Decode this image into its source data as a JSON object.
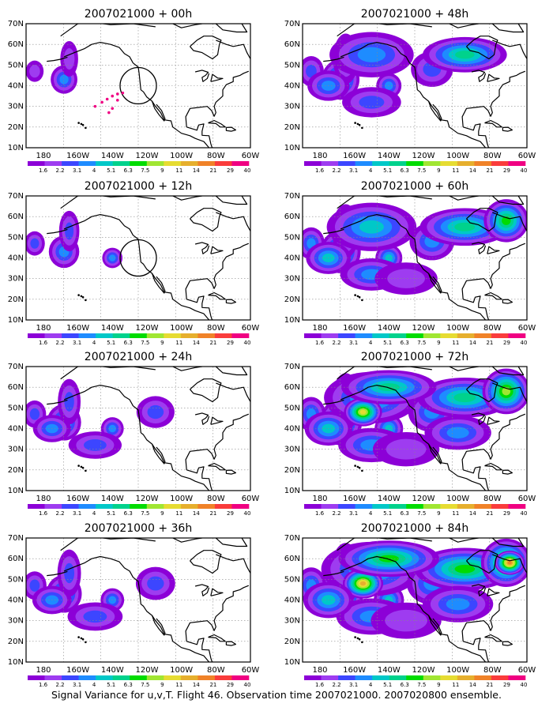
{
  "caption": "Signal Variance for u,v,T. Flight 46. Observation time 2007021000. 2007020800 ensemble.",
  "axes": {
    "x_ticks": [
      "180",
      "160W",
      "140W",
      "120W",
      "100W",
      "80W",
      "60W"
    ],
    "y_ticks": [
      "10N",
      "20N",
      "30N",
      "40N",
      "50N",
      "60N",
      "70N"
    ]
  },
  "colorbar": {
    "labels": [
      "1.6",
      "2.2",
      "3.1",
      "4",
      "5.1",
      "6.3",
      "7.5",
      "9",
      "11",
      "14",
      "21",
      "29",
      "40"
    ],
    "colors": [
      "#8c00d7",
      "#9e3cf0",
      "#3c46ff",
      "#1e8cff",
      "#00c8c8",
      "#00d28c",
      "#00dc00",
      "#a0e632",
      "#e6dc32",
      "#e6af2d",
      "#f08228",
      "#fa3c3c",
      "#f00082"
    ]
  },
  "panels": [
    {
      "title": "2007021000 + 00h",
      "intensity": 0.2,
      "circle": true
    },
    {
      "title": "2007021000 + 48h",
      "intensity": 0.65,
      "circle": false
    },
    {
      "title": "2007021000 + 12h",
      "intensity": 0.35,
      "circle": true
    },
    {
      "title": "2007021000 + 60h",
      "intensity": 0.75,
      "circle": false
    },
    {
      "title": "2007021000 + 24h",
      "intensity": 0.5,
      "circle": false
    },
    {
      "title": "2007021000 + 72h",
      "intensity": 0.85,
      "circle": false
    },
    {
      "title": "2007021000 + 36h",
      "intensity": 0.55,
      "circle": false
    },
    {
      "title": "2007021000 + 84h",
      "intensity": 0.95,
      "circle": false
    }
  ]
}
